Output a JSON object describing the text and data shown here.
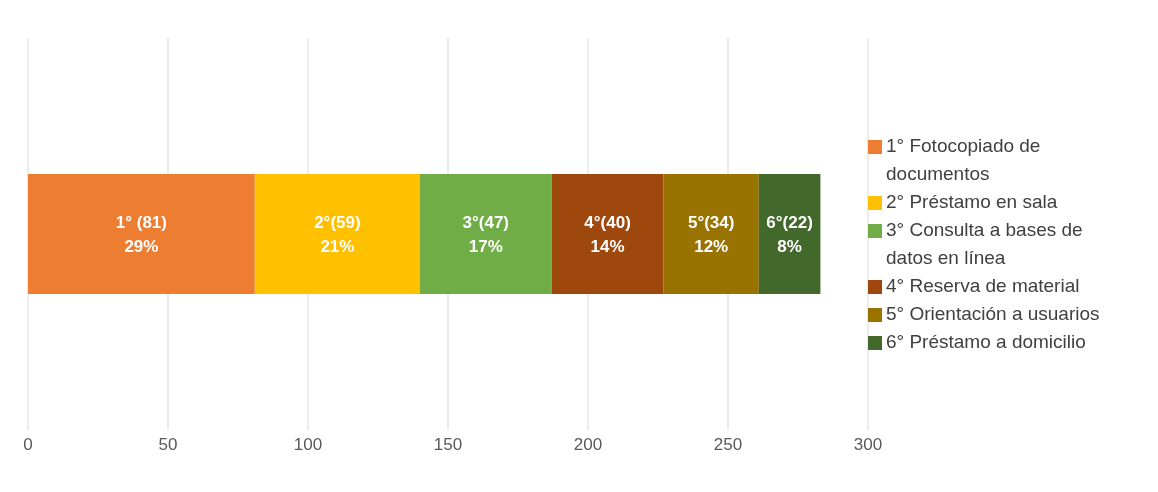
{
  "chart_data": {
    "type": "bar",
    "orientation": "horizontal",
    "stacked": true,
    "categories": [
      null
    ],
    "series": [
      {
        "name": "1° Fotocopiado de documentos",
        "color": "#ed7d31",
        "values": [
          81
        ],
        "value_labels": [
          "1° (81)\n29%"
        ]
      },
      {
        "name": "2° Préstamo en sala",
        "color": "#ffc000",
        "values": [
          59
        ],
        "value_labels": [
          "2°(59)\n21%"
        ]
      },
      {
        "name": "3° Consulta a bases de datos en línea",
        "color": "#70ad47",
        "values": [
          47
        ],
        "value_labels": [
          "3°(47)\n17%"
        ]
      },
      {
        "name": "4° Reserva de material",
        "color": "#9e480e",
        "values": [
          40
        ],
        "value_labels": [
          "4°(40)\n14%"
        ]
      },
      {
        "name": "5° Orientación a usuarios",
        "color": "#997300",
        "values": [
          34
        ],
        "value_labels": [
          "5°(34)\n12%"
        ]
      },
      {
        "name": "6° Préstamo a domicilio",
        "color": "#43682b",
        "values": [
          22
        ],
        "value_labels": [
          "6°(22)\n8%"
        ]
      }
    ],
    "xlim": [
      0,
      300
    ],
    "xticks": [
      0,
      50,
      100,
      150,
      200,
      250,
      300
    ],
    "grid": "x",
    "legend": "right"
  }
}
